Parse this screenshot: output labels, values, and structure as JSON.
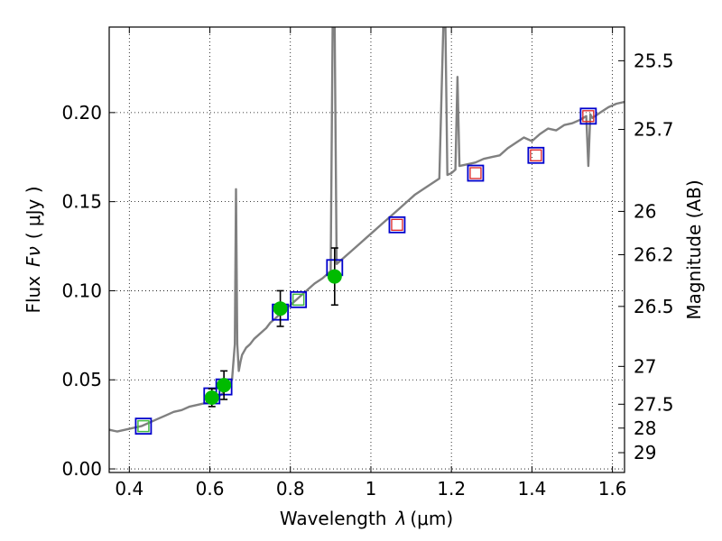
{
  "chart_data": {
    "type": "scatter",
    "title": "",
    "xlabel_main": "Wavelength",
    "xlabel_symbol": "λ",
    "xlabel_unit": "(μm)",
    "ylabel_main": "Flux",
    "ylabel_symbol": "Fν",
    "ylabel_unit": "( μJy )",
    "y2label": "Magnitude (AB)",
    "xlim": [
      0.35,
      1.63
    ],
    "ylim": [
      -0.002,
      0.248
    ],
    "xticks": [
      0.4,
      0.6,
      0.8,
      1.0,
      1.2,
      1.4,
      1.6
    ],
    "xticklabels": [
      "0.4",
      "0.6",
      "0.8",
      "1",
      "1.2",
      "1.4",
      "1.6"
    ],
    "yticks": [
      0.0,
      0.05,
      0.1,
      0.15,
      0.2
    ],
    "yticklabels": [
      "0.00",
      "0.05",
      "0.10",
      "0.15",
      "0.20"
    ],
    "y2ticklabels": [
      "25.5",
      "25.7",
      "26",
      "26.2",
      "26.5",
      "27",
      "27.5",
      "28",
      "29"
    ],
    "grid": true,
    "colors": {
      "spectrum": "#808080",
      "model_box": "#0000cc",
      "green_box": "#44bb44",
      "red_box": "#dd2222",
      "measured": "#00bb00",
      "errorbar": "#000000"
    },
    "series": [
      {
        "name": "model spectrum",
        "kind": "line",
        "x": [
          0.35,
          0.37,
          0.39,
          0.41,
          0.43,
          0.45,
          0.47,
          0.49,
          0.51,
          0.53,
          0.55,
          0.57,
          0.59,
          0.61,
          0.63,
          0.645,
          0.655,
          0.662,
          0.665,
          0.668,
          0.672,
          0.676,
          0.68,
          0.69,
          0.7,
          0.71,
          0.72,
          0.73,
          0.74,
          0.75,
          0.76,
          0.77,
          0.78,
          0.79,
          0.8,
          0.82,
          0.84,
          0.86,
          0.88,
          0.9,
          0.905,
          0.91,
          0.915,
          0.93,
          0.95,
          0.97,
          0.99,
          1.01,
          1.03,
          1.05,
          1.07,
          1.09,
          1.11,
          1.13,
          1.15,
          1.17,
          1.18,
          1.185,
          1.19,
          1.2,
          1.21,
          1.215,
          1.22,
          1.24,
          1.26,
          1.28,
          1.3,
          1.32,
          1.34,
          1.36,
          1.38,
          1.4,
          1.42,
          1.44,
          1.46,
          1.48,
          1.5,
          1.52,
          1.535,
          1.54,
          1.545,
          1.55,
          1.57,
          1.59,
          1.61,
          1.63
        ],
        "y": [
          0.022,
          0.021,
          0.022,
          0.023,
          0.024,
          0.026,
          0.028,
          0.03,
          0.032,
          0.033,
          0.035,
          0.036,
          0.037,
          0.039,
          0.042,
          0.046,
          0.05,
          0.07,
          0.157,
          0.07,
          0.055,
          0.06,
          0.064,
          0.068,
          0.07,
          0.073,
          0.075,
          0.077,
          0.079,
          0.082,
          0.084,
          0.086,
          0.088,
          0.09,
          0.092,
          0.096,
          0.1,
          0.104,
          0.107,
          0.111,
          0.25,
          0.25,
          0.115,
          0.118,
          0.122,
          0.126,
          0.13,
          0.134,
          0.138,
          0.142,
          0.146,
          0.15,
          0.154,
          0.157,
          0.16,
          0.163,
          0.25,
          0.25,
          0.165,
          0.166,
          0.168,
          0.22,
          0.17,
          0.171,
          0.172,
          0.174,
          0.175,
          0.176,
          0.18,
          0.183,
          0.186,
          0.184,
          0.188,
          0.191,
          0.19,
          0.193,
          0.194,
          0.196,
          0.198,
          0.17,
          0.199,
          0.197,
          0.2,
          0.203,
          0.205,
          0.206
        ]
      },
      {
        "name": "model photometry (green)",
        "kind": "open-square",
        "x": [
          0.435,
          0.82
        ],
        "y": [
          0.024,
          0.095
        ]
      },
      {
        "name": "model photometry (red)",
        "kind": "open-square",
        "x": [
          1.065,
          1.26,
          1.41,
          1.54
        ],
        "y": [
          0.137,
          0.166,
          0.176,
          0.198
        ]
      },
      {
        "name": "model photometry (blue)",
        "kind": "open-square",
        "x": [
          0.435,
          0.605,
          0.635,
          0.775,
          0.82,
          0.91,
          1.065,
          1.26,
          1.41,
          1.54
        ],
        "y": [
          0.024,
          0.041,
          0.046,
          0.088,
          0.095,
          0.113,
          0.137,
          0.166,
          0.176,
          0.198
        ]
      },
      {
        "name": "measured flux",
        "kind": "point-errorbar",
        "x": [
          0.605,
          0.635,
          0.775,
          0.91
        ],
        "y": [
          0.04,
          0.047,
          0.09,
          0.108
        ],
        "err": [
          0.005,
          0.008,
          0.01,
          0.016
        ]
      }
    ],
    "magnitude_tick_values": [
      25.5,
      25.7,
      26.0,
      26.2,
      26.5,
      27.0,
      27.5,
      28.0,
      29.0
    ]
  }
}
